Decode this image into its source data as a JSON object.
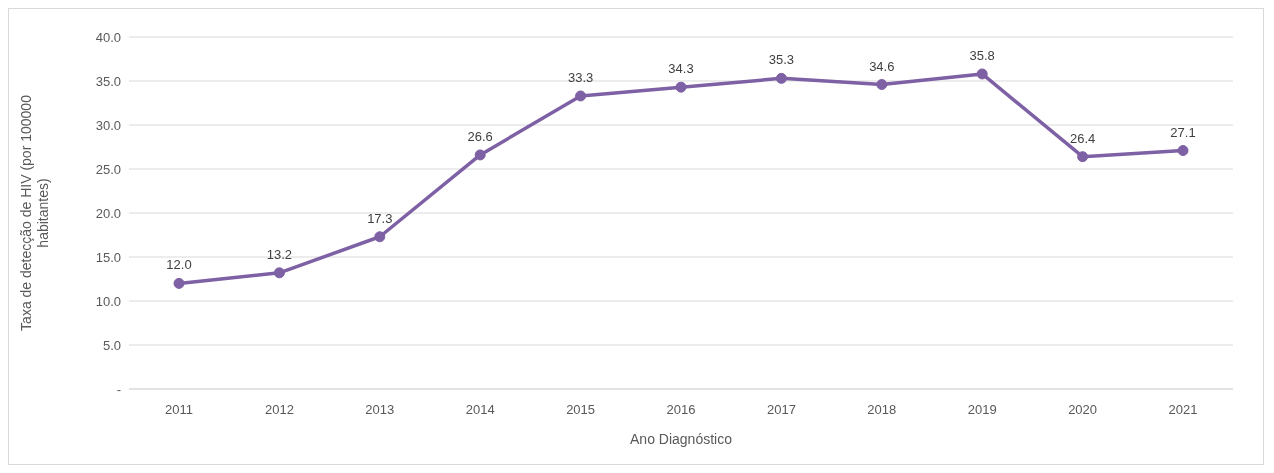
{
  "chart_data": {
    "type": "line",
    "xlabel": "Ano Diagnóstico",
    "ylabel": "Taxa de detecção de HIV (por 100000 habitantes)",
    "categories": [
      "2011",
      "2012",
      "2013",
      "2014",
      "2015",
      "2016",
      "2017",
      "2018",
      "2019",
      "2020",
      "2021"
    ],
    "series": [
      {
        "color": "#7e60a4",
        "values": [
          12.0,
          13.2,
          17.3,
          26.6,
          33.3,
          34.3,
          35.3,
          34.6,
          35.8,
          26.4,
          27.1
        ],
        "value_labels": [
          "12.0",
          "13.2",
          "17.3",
          "26.6",
          "33.3",
          "34.3",
          "35.3",
          "34.6",
          "35.8",
          "26.4",
          "27.1"
        ]
      }
    ],
    "ylim": [
      0,
      40
    ],
    "yticks": [
      {
        "value": 0,
        "label": "-"
      },
      {
        "value": 5,
        "label": "5.0"
      },
      {
        "value": 10,
        "label": "10.0"
      },
      {
        "value": 15,
        "label": "15.0"
      },
      {
        "value": 20,
        "label": "20.0"
      },
      {
        "value": 25,
        "label": "25.0"
      },
      {
        "value": 30,
        "label": "30.0"
      },
      {
        "value": 35,
        "label": "35.0"
      },
      {
        "value": 40,
        "label": "40.0"
      }
    ],
    "grid": "y",
    "legend": false,
    "marker": "circle",
    "line_style": "solid"
  }
}
